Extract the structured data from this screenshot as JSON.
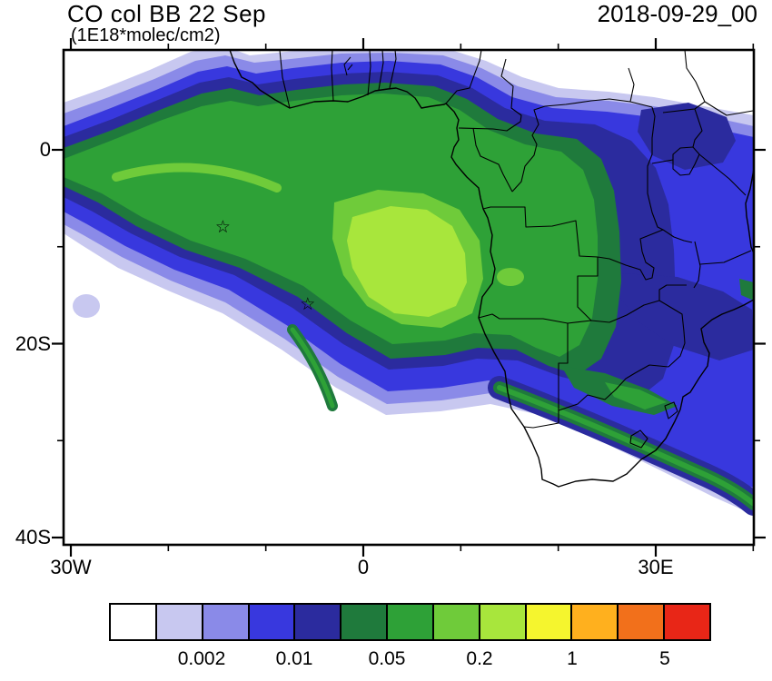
{
  "header": {
    "title": "CO col BB 22 Sep",
    "subtitle": "(1E18*molec/cm2)",
    "date": "2018-09-29_00"
  },
  "axes": {
    "x_ticks": [
      {
        "label": "30W",
        "lon": -30
      },
      {
        "label": "0",
        "lon": 0
      },
      {
        "label": "30E",
        "lon": 30
      }
    ],
    "x_minor": [
      -20,
      -10,
      10,
      20,
      40
    ],
    "y_ticks": [
      {
        "label": "0",
        "lat": 0
      },
      {
        "label": "20S",
        "lat": -20
      },
      {
        "label": "40S",
        "lat": -40
      }
    ],
    "y_minor": [
      -10,
      -30
    ]
  },
  "colorbar": {
    "n_cells": 13,
    "colors": [
      "#FFFFFF",
      "#C8C8F0",
      "#8A8AE8",
      "#3838DE",
      "#2B2B9E",
      "#1F7A3C",
      "#2EA137",
      "#6FCB3A",
      "#A8E63C",
      "#F5F52E",
      "#FFB01E",
      "#F2701B",
      "#E82617"
    ],
    "ticks": [
      {
        "label": "0.002",
        "boundary": 2
      },
      {
        "label": "0.01",
        "boundary": 4
      },
      {
        "label": "0.05",
        "boundary": 6
      },
      {
        "label": "0.2",
        "boundary": 8
      },
      {
        "label": "1",
        "boundary": 10
      },
      {
        "label": "5",
        "boundary": 12
      }
    ]
  },
  "chart_data": {
    "type": "heatmap",
    "title": "CO col BB 22 Sep",
    "units": "1E18*molec/cm2",
    "timestamp": "2018-09-29_00",
    "lon_range": [
      -31,
      40
    ],
    "lat_range": [
      -41,
      10
    ],
    "contour_levels": [
      0.001,
      0.002,
      0.005,
      0.01,
      0.02,
      0.05,
      0.1,
      0.2,
      0.5,
      1,
      2,
      5
    ],
    "labeled_levels": [
      0.002,
      0.01,
      0.05,
      0.2,
      1,
      5
    ],
    "legend_position": "bottom",
    "grid": false,
    "marker_symbol": "open-star",
    "markers": [
      {
        "lon": -14.4,
        "lat": -7.9
      },
      {
        "lon": -5.7,
        "lat": -15.9
      }
    ]
  }
}
